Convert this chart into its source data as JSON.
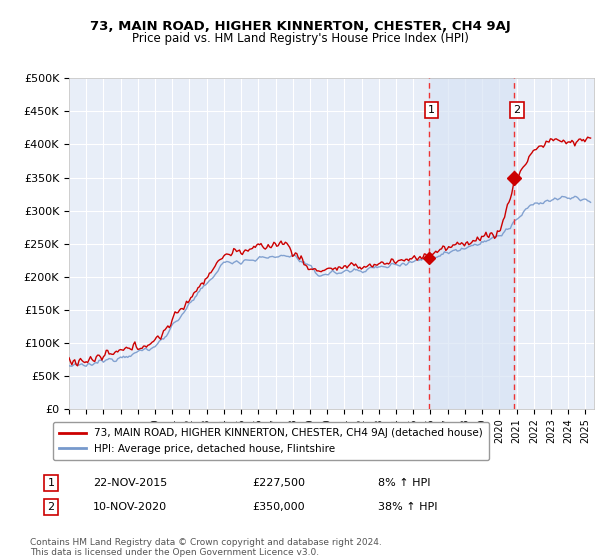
{
  "title": "73, MAIN ROAD, HIGHER KINNERTON, CHESTER, CH4 9AJ",
  "subtitle": "Price paid vs. HM Land Registry's House Price Index (HPI)",
  "red_label": "73, MAIN ROAD, HIGHER KINNERTON, CHESTER, CH4 9AJ (detached house)",
  "blue_label": "HPI: Average price, detached house, Flintshire",
  "annotation1_date": "22-NOV-2015",
  "annotation1_price": "£227,500",
  "annotation1_hpi": "8% ↑ HPI",
  "annotation2_date": "10-NOV-2020",
  "annotation2_price": "£350,000",
  "annotation2_hpi": "38% ↑ HPI",
  "footer": "Contains HM Land Registry data © Crown copyright and database right 2024.\nThis data is licensed under the Open Government Licence v3.0.",
  "sale1_x": 2015.9,
  "sale1_y": 227500,
  "sale2_x": 2020.86,
  "sale2_y": 350000,
  "vline1_x": 2015.9,
  "vline2_x": 2020.86,
  "xmin": 1995,
  "xmax": 2025.5,
  "ymin": 0,
  "ymax": 500000,
  "yticks": [
    0,
    50000,
    100000,
    150000,
    200000,
    250000,
    300000,
    350000,
    400000,
    450000,
    500000
  ],
  "ytick_labels": [
    "£0",
    "£50K",
    "£100K",
    "£150K",
    "£200K",
    "£250K",
    "£300K",
    "£350K",
    "£400K",
    "£450K",
    "£500K"
  ],
  "background_color": "#ffffff",
  "plot_bg_color": "#e8eef8",
  "grid_color": "#ffffff",
  "red_color": "#cc0000",
  "blue_color": "#7799cc",
  "vline_color": "#ee3333",
  "shade_color": "#d8e4f4"
}
